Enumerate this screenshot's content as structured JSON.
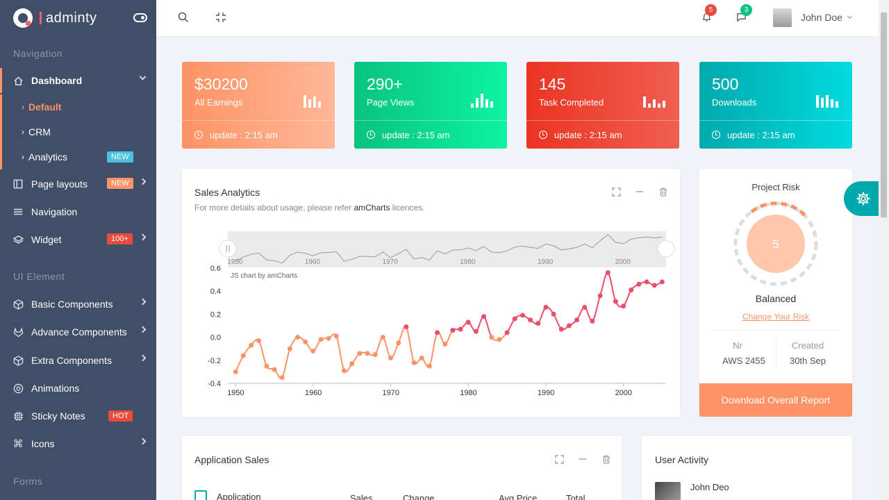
{
  "brand": {
    "name": "adminty"
  },
  "nav": {
    "caption_navigation": "Navigation",
    "dashboard": "Dashboard",
    "sub_default": "Default",
    "sub_crm": "CRM",
    "sub_analytics": "Analytics",
    "badge_new": "NEW",
    "page_layouts": "Page layouts",
    "navigation": "Navigation",
    "widget": "Widget",
    "badge_100": "100+",
    "caption_ui": "UI Element",
    "basic": "Basic Components",
    "advance": "Advance Components",
    "extra": "Extra Components",
    "animations": "Animations",
    "sticky": "Sticky Notes",
    "badge_hot": "HOT",
    "icons": "Icons",
    "caption_forms": "Forms"
  },
  "header": {
    "notif_count": "5",
    "msg_count": "3",
    "user_name": "John Doe"
  },
  "stats": [
    {
      "value": "$30200",
      "label": "All Earnings",
      "update": "update : 2:15 am",
      "color_from": "#fe9365",
      "color_to": "#feb798"
    },
    {
      "value": "290+",
      "label": "Page Views",
      "update": "update : 2:15 am",
      "color_from": "#0ac282",
      "color_to": "#0df3a3"
    },
    {
      "value": "145",
      "label": "Task Completed",
      "update": "update : 2:15 am",
      "color_from": "#eb3422",
      "color_to": "#ef5f51"
    },
    {
      "value": "500",
      "label": "Downloads",
      "update": "update : 2:15 am",
      "color_from": "#01a9ac",
      "color_to": "#01dbdf"
    }
  ],
  "sales": {
    "title": "Sales Analytics",
    "subtitle_pre": "For more details about usage, please refer ",
    "subtitle_link": "amCharts",
    "subtitle_post": " licences.",
    "credit": "JS chart by amCharts"
  },
  "chart_data": {
    "type": "line",
    "x": [
      1950,
      1951,
      1952,
      1953,
      1954,
      1955,
      1956,
      1957,
      1958,
      1959,
      1960,
      1961,
      1962,
      1963,
      1964,
      1965,
      1966,
      1967,
      1968,
      1969,
      1970,
      1971,
      1972,
      1973,
      1974,
      1975,
      1976,
      1977,
      1978,
      1979,
      1980,
      1981,
      1982,
      1983,
      1984,
      1985,
      1986,
      1987,
      1988,
      1989,
      1990,
      1991,
      1992,
      1993,
      1994,
      1995,
      1996,
      1997,
      1998,
      1999,
      2000,
      2001,
      2002,
      2003,
      2004,
      2005
    ],
    "values": [
      -0.3,
      -0.16,
      -0.07,
      -0.03,
      -0.25,
      -0.28,
      -0.35,
      -0.1,
      0.0,
      -0.04,
      -0.12,
      -0.02,
      -0.01,
      0.01,
      -0.29,
      -0.23,
      -0.14,
      -0.14,
      -0.15,
      0.0,
      -0.18,
      -0.05,
      0.09,
      -0.22,
      -0.18,
      -0.25,
      0.04,
      -0.06,
      0.06,
      0.07,
      0.13,
      0.05,
      0.18,
      0.0,
      -0.02,
      0.04,
      0.16,
      0.19,
      0.15,
      0.12,
      0.26,
      0.2,
      0.07,
      0.1,
      0.15,
      0.26,
      0.14,
      0.36,
      0.56,
      0.31,
      0.27,
      0.41,
      0.46,
      0.48,
      0.45,
      0.48
    ],
    "xlim": [
      1949,
      2005.5
    ],
    "ylim": [
      -0.4,
      0.6
    ],
    "y_ticks": [
      "0.6",
      "0.4",
      "0.2",
      "0.0",
      "-0.2",
      "-0.4"
    ],
    "x_ticks": [
      "1950",
      "1960",
      "1970",
      "1980",
      "1990",
      "2000"
    ],
    "color_low": "#fe9365",
    "color_high": "#eb4e6b",
    "grid": false
  },
  "risk": {
    "title": "Project Risk",
    "score": "5",
    "status": "Balanced",
    "link": "Change Your Risk",
    "nr_label": "Nr",
    "nr_value": "AWS 2455",
    "created_label": "Created",
    "created_value": "30th Sep",
    "button": "Download Overall Report"
  },
  "app_sales": {
    "title": "Application Sales",
    "col_application": "Application",
    "col_sales": "Sales",
    "col_change": "Change",
    "col_avg": "Avg Price",
    "col_total": "Total"
  },
  "activity": {
    "title": "User Activity",
    "user": "John Deo"
  }
}
